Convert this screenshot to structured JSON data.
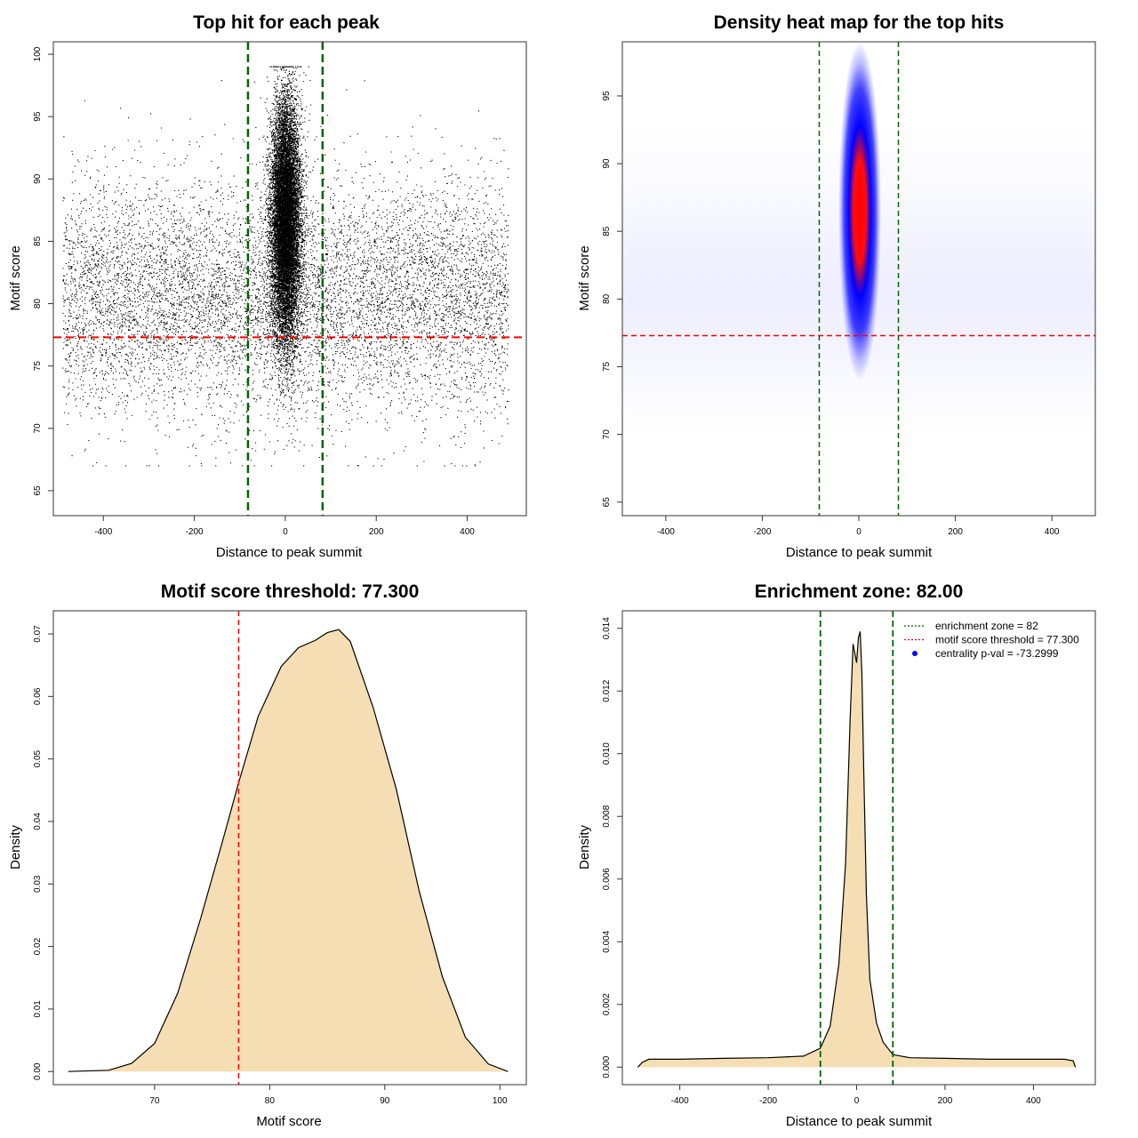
{
  "chart_data": [
    {
      "type": "scatter",
      "title": "Top hit for each peak",
      "xlabel": "Distance to peak summit",
      "ylabel": "Motif score",
      "xlim": [
        -510,
        530
      ],
      "ylim": [
        63,
        101
      ],
      "xticks": [
        -400,
        -200,
        0,
        200,
        400
      ],
      "yticks": [
        65,
        70,
        75,
        80,
        85,
        90,
        95,
        100
      ],
      "x_extent": [
        -490,
        490
      ],
      "background_score_mean": 80.5,
      "central_score_mean": 86.5,
      "threshold_line": 77.3,
      "enrichment_lines": [
        -82,
        82
      ],
      "colors": {
        "points": "#000000",
        "threshold": "#ff0000",
        "enrichment": "#006400"
      }
    },
    {
      "type": "heatmap",
      "title": "Density heat map for the top hits",
      "xlabel": "Distance to peak summit",
      "ylabel": "Motif score",
      "xlim": [
        -490,
        490
      ],
      "ylim": [
        64,
        99
      ],
      "xticks": [
        -400,
        -200,
        0,
        200,
        400
      ],
      "yticks": [
        65,
        70,
        75,
        80,
        85,
        90,
        95
      ],
      "hotspot": {
        "x": 2,
        "y": 86.5
      },
      "threshold_line": 77.3,
      "enrichment_lines": [
        -82,
        82
      ],
      "colors": {
        "low": "#ffffff",
        "mid": "#0000ff",
        "high": "#ff0000",
        "threshold": "#ff0000",
        "enrichment": "#006400"
      }
    },
    {
      "type": "area",
      "title": "Motif score threshold: 77.300",
      "xlabel": "Motif score",
      "ylabel": "Density",
      "xlim": [
        61.2,
        102.3
      ],
      "ylim": [
        -0.0021,
        0.0737
      ],
      "xticks": [
        70,
        80,
        90,
        100
      ],
      "yticks": [
        0.0,
        0.01,
        0.02,
        0.03,
        0.04,
        0.05,
        0.06,
        0.07
      ],
      "ytick_labels": [
        "0.00",
        "0.01",
        "0.02",
        "0.03",
        "0.04",
        "0.05",
        "0.06",
        "0.07"
      ],
      "x": [
        62.5,
        66,
        68,
        70,
        72,
        74,
        76,
        77.3,
        79,
        81,
        82.5,
        84,
        85,
        86,
        87,
        89,
        91,
        93,
        95,
        97,
        99,
        100.7
      ],
      "y": [
        0.0,
        0.0002,
        0.0013,
        0.0045,
        0.0125,
        0.0245,
        0.0375,
        0.0462,
        0.0568,
        0.0648,
        0.0678,
        0.069,
        0.0702,
        0.0707,
        0.0688,
        0.0582,
        0.0452,
        0.0288,
        0.0152,
        0.0055,
        0.0012,
        0.0
      ],
      "threshold_line": 77.3,
      "colors": {
        "fill": "#f5deb3",
        "line": "#000000",
        "threshold": "#ff0000"
      }
    },
    {
      "type": "area",
      "title": "Enrichment zone: 82.00",
      "xlabel": "Distance to peak summit",
      "ylabel": "Density",
      "xlim": [
        -530,
        540
      ],
      "ylim": [
        -0.00056,
        0.01456
      ],
      "xticks": [
        -400,
        -200,
        0,
        200,
        400
      ],
      "yticks": [
        0.0,
        0.002,
        0.004,
        0.006,
        0.008,
        0.01,
        0.012,
        0.014
      ],
      "ytick_labels": [
        "0.000",
        "0.002",
        "0.004",
        "0.006",
        "0.008",
        "0.010",
        "0.012",
        "0.014"
      ],
      "x": [
        -495,
        -485,
        -470,
        -440,
        -400,
        -300,
        -200,
        -120,
        -82,
        -60,
        -40,
        -25,
        -15,
        -8,
        -4,
        0,
        4,
        8,
        12,
        16,
        22,
        30,
        45,
        60,
        82,
        120,
        200,
        300,
        400,
        470,
        490,
        495
      ],
      "y": [
        0.0,
        0.00015,
        0.00025,
        0.00025,
        0.00025,
        0.00028,
        0.0003,
        0.00035,
        0.0006,
        0.0013,
        0.0033,
        0.0065,
        0.011,
        0.0135,
        0.0132,
        0.0129,
        0.0137,
        0.0139,
        0.0125,
        0.0095,
        0.0055,
        0.0028,
        0.0014,
        0.0008,
        0.0004,
        0.0003,
        0.00028,
        0.00025,
        0.00025,
        0.00025,
        0.0002,
        0.0
      ],
      "enrichment_lines": [
        -82,
        82
      ],
      "colors": {
        "fill": "#f5deb3",
        "line": "#000000",
        "enrichment": "#006400",
        "threshold": "#ff0000",
        "point": "#0000ff"
      },
      "legend": {
        "position": "top-right",
        "items": [
          {
            "label": "enrichment zone = 82",
            "symbol": "line",
            "color": "#006400"
          },
          {
            "label": "motif score threshold = 77.300",
            "symbol": "line",
            "color": "#ff0000"
          },
          {
            "label": "centrality p-val = -73.2999",
            "symbol": "point",
            "color": "#0000ff"
          }
        ]
      }
    }
  ]
}
